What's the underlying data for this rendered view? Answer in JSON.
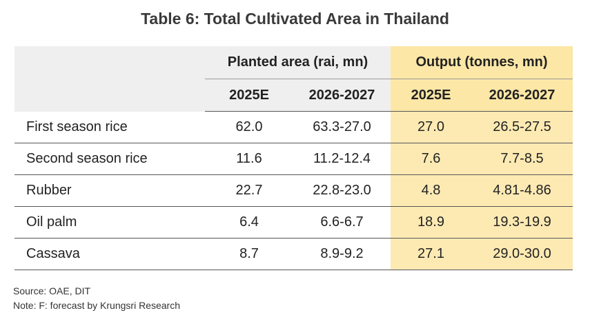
{
  "title": "Table 6: Total Cultivated Area in Thailand",
  "table": {
    "group_headers": {
      "planted": "Planted area (rai, mn)",
      "output": "Output (tonnes, mn)"
    },
    "sub_headers": [
      "2025E",
      "2026-2027",
      "2025E",
      "2026-2027"
    ],
    "rows": [
      {
        "label": "First season rice",
        "values": [
          "62.0",
          "63.3-27.0",
          "27.0",
          "26.5-27.5"
        ]
      },
      {
        "label": "Second season rice",
        "values": [
          "11.6",
          "11.2-12.4",
          "7.6",
          "7.7-8.5"
        ]
      },
      {
        "label": "Rubber",
        "values": [
          "22.7",
          "22.8-23.0",
          "4.8",
          "4.81-4.86"
        ]
      },
      {
        "label": "Oil palm",
        "values": [
          "6.4",
          "6.6-6.7",
          "18.9",
          "19.3-19.9"
        ]
      },
      {
        "label": "Cassava",
        "values": [
          "8.7",
          "8.9-9.2",
          "27.1",
          "29.0-30.0"
        ]
      }
    ]
  },
  "footer": {
    "source": "Source: OAE, DIT",
    "note": "Note: F: forecast by Krungsri Research"
  }
}
